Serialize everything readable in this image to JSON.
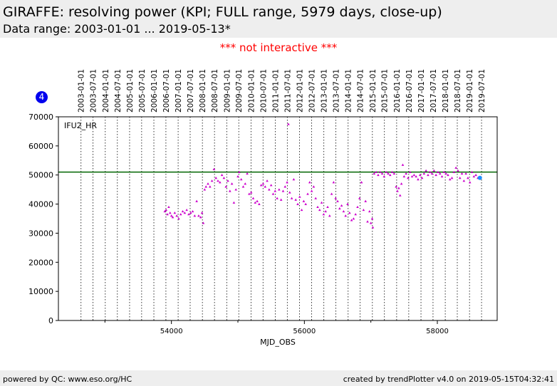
{
  "header": {
    "title": "GIRAFFE: resolving power (KPI; FULL range, 5979 days, close-up)",
    "subtitle": "Data range: 2003-01-01 ... 2019-05-13*"
  },
  "notice": "*** not interactive ***",
  "badge": "4",
  "footer": {
    "left": "powered by QC: www.eso.org/HC",
    "right": "created by trendPlotter v4.0 on 2019-05-15T04:32:41"
  },
  "chart_data": {
    "type": "scatter",
    "xlabel": "MJD_OBS",
    "ylabel": "",
    "panel_label": "IFU2_HR",
    "xlim": [
      52300,
      58900
    ],
    "ylim": [
      0,
      70000
    ],
    "x_ticks": [
      54000,
      56000,
      58000
    ],
    "x_tick_labels": [
      "54000",
      "56000",
      "58000"
    ],
    "x_minor_ticks": [
      53000,
      55000,
      57000
    ],
    "y_ticks": [
      0,
      10000,
      20000,
      30000,
      40000,
      50000,
      60000,
      70000
    ],
    "y_tick_labels": [
      "0",
      "10000",
      "20000",
      "30000",
      "40000",
      "50000",
      "60000",
      "70000"
    ],
    "reference_line": 51000,
    "colors": {
      "points": "#cc00cc",
      "reference": "#006400",
      "last_point": "#1e90ff"
    },
    "date_markers": [
      {
        "label": "2003-01-01",
        "mjd": 52640
      },
      {
        "label": "2003-07-01",
        "mjd": 52821
      },
      {
        "label": "2004-01-01",
        "mjd": 53005
      },
      {
        "label": "2004-07-01",
        "mjd": 53187
      },
      {
        "label": "2005-01-01",
        "mjd": 53371
      },
      {
        "label": "2005-07-01",
        "mjd": 53552
      },
      {
        "label": "2006-01-01",
        "mjd": 53736
      },
      {
        "label": "2006-07-01",
        "mjd": 53917
      },
      {
        "label": "2007-01-01",
        "mjd": 54101
      },
      {
        "label": "2007-07-01",
        "mjd": 54282
      },
      {
        "label": "2008-01-01",
        "mjd": 54466
      },
      {
        "label": "2008-07-01",
        "mjd": 54648
      },
      {
        "label": "2009-01-01",
        "mjd": 54832
      },
      {
        "label": "2009-07-01",
        "mjd": 55013
      },
      {
        "label": "2010-01-01",
        "mjd": 55197
      },
      {
        "label": "2010-07-01",
        "mjd": 55378
      },
      {
        "label": "2011-01-01",
        "mjd": 55562
      },
      {
        "label": "2011-07-01",
        "mjd": 55743
      },
      {
        "label": "2012-01-01",
        "mjd": 55927
      },
      {
        "label": "2012-07-01",
        "mjd": 56109
      },
      {
        "label": "2013-01-01",
        "mjd": 56293
      },
      {
        "label": "2013-07-01",
        "mjd": 56474
      },
      {
        "label": "2014-01-01",
        "mjd": 56658
      },
      {
        "label": "2014-07-01",
        "mjd": 56839
      },
      {
        "label": "2015-01-01",
        "mjd": 57023
      },
      {
        "label": "2015-07-01",
        "mjd": 57204
      },
      {
        "label": "2016-01-01",
        "mjd": 57388
      },
      {
        "label": "2016-07-01",
        "mjd": 57570
      },
      {
        "label": "2017-01-01",
        "mjd": 57754
      },
      {
        "label": "2017-07-01",
        "mjd": 57935
      },
      {
        "label": "2018-01-01",
        "mjd": 58119
      },
      {
        "label": "2018-07-01",
        "mjd": 58300
      },
      {
        "label": "2019-01-01",
        "mjd": 58484
      },
      {
        "label": "2019-07-01",
        "mjd": 58665
      }
    ],
    "series": [
      {
        "points": [
          [
            53900,
            37500
          ],
          [
            53920,
            38000
          ],
          [
            53940,
            36500
          ],
          [
            53960,
            39000
          ],
          [
            53980,
            37000
          ],
          [
            54000,
            36000
          ],
          [
            54020,
            35500
          ],
          [
            54050,
            37000
          ],
          [
            54080,
            36000
          ],
          [
            54110,
            35000
          ],
          [
            54140,
            36500
          ],
          [
            54170,
            37500
          ],
          [
            54200,
            37000
          ],
          [
            54230,
            38000
          ],
          [
            54260,
            36500
          ],
          [
            54290,
            37000
          ],
          [
            54320,
            37500
          ],
          [
            54350,
            36000
          ],
          [
            54380,
            41000
          ],
          [
            54410,
            36000
          ],
          [
            54440,
            35500
          ],
          [
            54460,
            37000
          ],
          [
            54480,
            33500
          ],
          [
            54500,
            45000
          ],
          [
            54520,
            46000
          ],
          [
            54550,
            47000
          ],
          [
            54580,
            46000
          ],
          [
            54610,
            48000
          ],
          [
            54640,
            52000
          ],
          [
            54670,
            49000
          ],
          [
            54700,
            48000
          ],
          [
            54730,
            47500
          ],
          [
            54760,
            50000
          ],
          [
            54790,
            49000
          ],
          [
            54820,
            46000
          ],
          [
            54850,
            48000
          ],
          [
            54880,
            44500
          ],
          [
            54910,
            47000
          ],
          [
            54940,
            40500
          ],
          [
            54970,
            45000
          ],
          [
            55000,
            49500
          ],
          [
            55020,
            51000
          ],
          [
            55050,
            48500
          ],
          [
            55080,
            46000
          ],
          [
            55110,
            47000
          ],
          [
            55140,
            50500
          ],
          [
            55170,
            43500
          ],
          [
            55200,
            44000
          ],
          [
            55230,
            42000
          ],
          [
            55260,
            40500
          ],
          [
            55290,
            41000
          ],
          [
            55320,
            40000
          ],
          [
            55350,
            46500
          ],
          [
            55380,
            47000
          ],
          [
            55410,
            46000
          ],
          [
            55440,
            48000
          ],
          [
            55470,
            45000
          ],
          [
            55500,
            46500
          ],
          [
            55530,
            43500
          ],
          [
            55560,
            44500
          ],
          [
            55590,
            42000
          ],
          [
            55620,
            45000
          ],
          [
            55650,
            41500
          ],
          [
            55680,
            44500
          ],
          [
            55710,
            46000
          ],
          [
            55740,
            47500
          ],
          [
            55760,
            67500
          ],
          [
            55780,
            44000
          ],
          [
            55810,
            42000
          ],
          [
            55840,
            48500
          ],
          [
            55870,
            41500
          ],
          [
            55900,
            40000
          ],
          [
            55930,
            42500
          ],
          [
            55960,
            38000
          ],
          [
            55990,
            41000
          ],
          [
            56020,
            40000
          ],
          [
            56050,
            43500
          ],
          [
            56080,
            47500
          ],
          [
            56110,
            44500
          ],
          [
            56140,
            46000
          ],
          [
            56170,
            42000
          ],
          [
            56200,
            39000
          ],
          [
            56230,
            38000
          ],
          [
            56260,
            40500
          ],
          [
            56290,
            36500
          ],
          [
            56320,
            37500
          ],
          [
            56350,
            39000
          ],
          [
            56380,
            36000
          ],
          [
            56410,
            43500
          ],
          [
            56440,
            47500
          ],
          [
            56470,
            42000
          ],
          [
            56500,
            41000
          ],
          [
            56530,
            38500
          ],
          [
            56560,
            39500
          ],
          [
            56590,
            37500
          ],
          [
            56620,
            36000
          ],
          [
            56650,
            40000
          ],
          [
            56680,
            37000
          ],
          [
            56710,
            34500
          ],
          [
            56740,
            35000
          ],
          [
            56770,
            36500
          ],
          [
            56800,
            39000
          ],
          [
            56830,
            42000
          ],
          [
            56860,
            47500
          ],
          [
            56890,
            38000
          ],
          [
            56920,
            41000
          ],
          [
            56950,
            34000
          ],
          [
            56980,
            37500
          ],
          [
            57000,
            33500
          ],
          [
            57020,
            35000
          ],
          [
            57030,
            32000
          ],
          [
            57050,
            50500
          ],
          [
            57080,
            51000
          ],
          [
            57110,
            50000
          ],
          [
            57140,
            51000
          ],
          [
            57170,
            50500
          ],
          [
            57200,
            49500
          ],
          [
            57230,
            51000
          ],
          [
            57260,
            50500
          ],
          [
            57290,
            50000
          ],
          [
            57320,
            51000
          ],
          [
            57350,
            50500
          ],
          [
            57380,
            46000
          ],
          [
            57400,
            44500
          ],
          [
            57420,
            45500
          ],
          [
            57440,
            43000
          ],
          [
            57460,
            47000
          ],
          [
            57480,
            53500
          ],
          [
            57500,
            49500
          ],
          [
            57530,
            50500
          ],
          [
            57560,
            49000
          ],
          [
            57590,
            51000
          ],
          [
            57620,
            49500
          ],
          [
            57650,
            50000
          ],
          [
            57680,
            49500
          ],
          [
            57710,
            48500
          ],
          [
            57740,
            50000
          ],
          [
            57770,
            49000
          ],
          [
            57800,
            50500
          ],
          [
            57830,
            51500
          ],
          [
            57860,
            50000
          ],
          [
            57890,
            51000
          ],
          [
            57920,
            50500
          ],
          [
            57950,
            51500
          ],
          [
            57980,
            50000
          ],
          [
            58010,
            51000
          ],
          [
            58040,
            50500
          ],
          [
            58070,
            49500
          ],
          [
            58100,
            51000
          ],
          [
            58130,
            50500
          ],
          [
            58160,
            50000
          ],
          [
            58190,
            48500
          ],
          [
            58220,
            49000
          ],
          [
            58250,
            51000
          ],
          [
            58280,
            52500
          ],
          [
            58310,
            51500
          ],
          [
            58340,
            49000
          ],
          [
            58370,
            50500
          ],
          [
            58400,
            48000
          ],
          [
            58430,
            50500
          ],
          [
            58460,
            49000
          ],
          [
            58490,
            47500
          ],
          [
            58520,
            51000
          ],
          [
            58550,
            49500
          ],
          [
            58580,
            50000
          ],
          [
            58610,
            49000
          ]
        ]
      }
    ],
    "last_point": [
      58640,
      49000
    ]
  }
}
